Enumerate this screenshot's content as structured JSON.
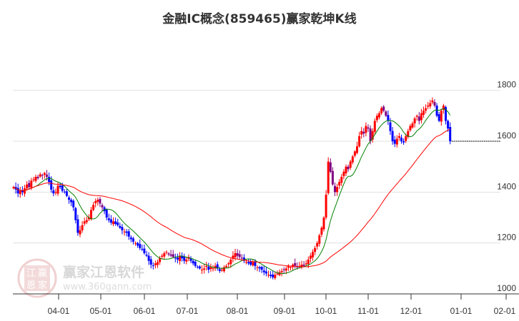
{
  "chart_data": {
    "type": "candlestick",
    "title": "金融IC概念(859465)赢家乾坤K线",
    "y_ticks": [
      1000,
      1200,
      1400,
      1600,
      1800
    ],
    "ylim": [
      1000,
      1800
    ],
    "x_ticks": [
      "04-01",
      "05-01",
      "06-01",
      "07-01",
      "08-01",
      "09-01",
      "10-01",
      "11-01",
      "12-01",
      "01-01",
      "02-01"
    ],
    "last_price_label": "1600",
    "grid": true,
    "colors": {
      "up": "#ff0000",
      "down": "#0000ff",
      "down_above_ma": "#800080",
      "ma_short": "#008000",
      "ma_long": "#ff0000"
    },
    "closes": [
      1420,
      1410,
      1395,
      1405,
      1400,
      1415,
      1430,
      1420,
      1445,
      1450,
      1460,
      1455,
      1470,
      1465,
      1475,
      1460,
      1440,
      1410,
      1395,
      1400,
      1425,
      1420,
      1405,
      1400,
      1385,
      1370,
      1360,
      1340,
      1290,
      1240,
      1250,
      1270,
      1285,
      1290,
      1300,
      1330,
      1350,
      1365,
      1370,
      1355,
      1340,
      1325,
      1300,
      1290,
      1280,
      1285,
      1275,
      1270,
      1260,
      1250,
      1245,
      1240,
      1225,
      1215,
      1205,
      1200,
      1190,
      1180,
      1175,
      1160,
      1150,
      1130,
      1115,
      1110,
      1120,
      1125,
      1140,
      1150,
      1160,
      1165,
      1155,
      1150,
      1145,
      1140,
      1135,
      1150,
      1140,
      1130,
      1135,
      1145,
      1130,
      1120,
      1110,
      1105,
      1100,
      1095,
      1100,
      1110,
      1095,
      1105,
      1100,
      1110,
      1100,
      1090,
      1095,
      1105,
      1110,
      1120,
      1135,
      1150,
      1160,
      1150,
      1145,
      1140,
      1130,
      1125,
      1120,
      1115,
      1125,
      1110,
      1105,
      1100,
      1095,
      1085,
      1080,
      1075,
      1070,
      1065,
      1075,
      1080,
      1085,
      1090,
      1095,
      1100,
      1110,
      1105,
      1115,
      1110,
      1105,
      1110,
      1115,
      1110,
      1120,
      1135,
      1150,
      1165,
      1180,
      1200,
      1230,
      1260,
      1300,
      1390,
      1520,
      1480,
      1430,
      1400,
      1420,
      1440,
      1460,
      1480,
      1500,
      1490,
      1520,
      1540,
      1560,
      1580,
      1620,
      1640,
      1630,
      1660,
      1650,
      1600,
      1640,
      1680,
      1700,
      1710,
      1730,
      1720,
      1700,
      1680,
      1640,
      1600,
      1590,
      1610,
      1620,
      1600,
      1595,
      1620,
      1640,
      1660,
      1670,
      1690,
      1700,
      1680,
      1710,
      1720,
      1730,
      1740,
      1750,
      1760,
      1740,
      1700,
      1680,
      1720,
      1740,
      1680,
      1650,
      1600
    ]
  },
  "watermark": {
    "brand": "赢家江恩软件",
    "url": "www.360gann.com",
    "seal": [
      "江",
      "赢",
      "恩",
      "家"
    ]
  }
}
